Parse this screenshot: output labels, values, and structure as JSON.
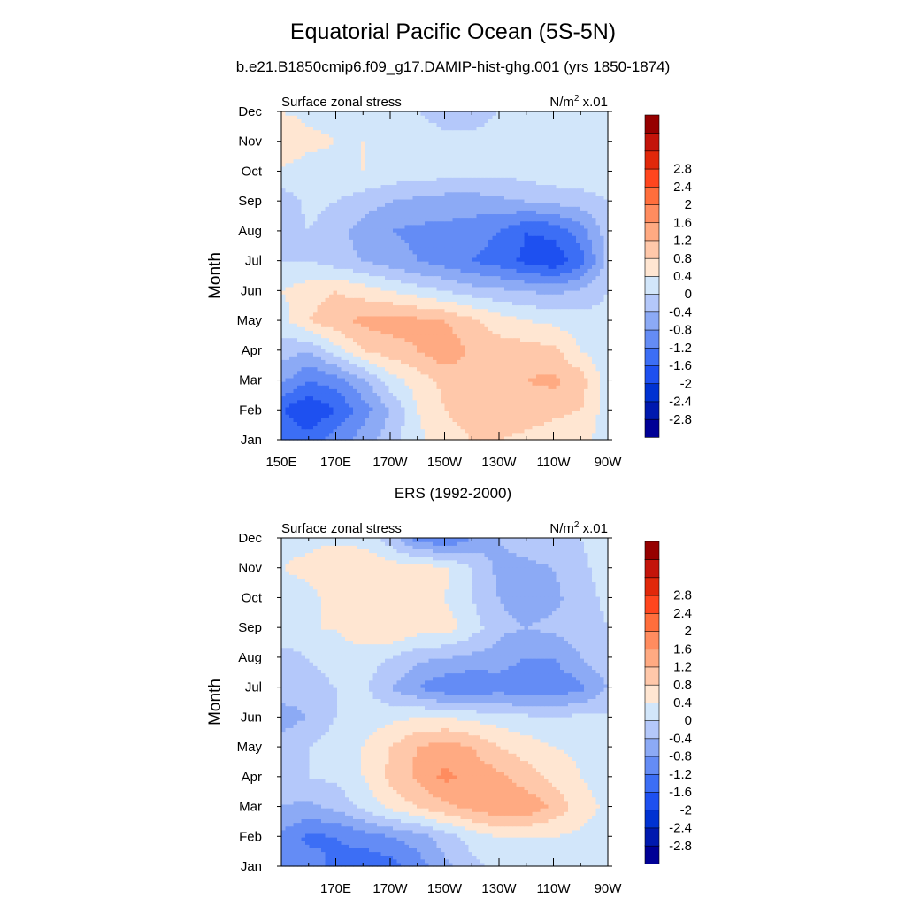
{
  "main_title": "Equatorial Pacific Ocean (5S-5N)",
  "subtitle": "b.e21.B1850cmip6.f09_g17.DAMIP-hist-ghg.001 (yrs 1850-1874)",
  "colors": [
    "#000096",
    "#0019af",
    "#0032d2",
    "#1e50f0",
    "#3c6ef5",
    "#648cf5",
    "#8caaf5",
    "#b4c8fa",
    "#d2e6fa",
    "#ffe6d2",
    "#ffc8aa",
    "#ffaa82",
    "#ff8c5f",
    "#ff6e3c",
    "#ff461e",
    "#e1280a",
    "#c3140a",
    "#960000"
  ],
  "chart_data": [
    {
      "type": "heatmap",
      "title": "",
      "left_label": "Surface zonal stress",
      "right_label": "N/m",
      "units_sup": "2",
      "units_suffix": " x.01",
      "ylabel": "Month",
      "xlabel": "",
      "x": [
        150,
        160,
        170,
        180,
        190,
        200,
        210,
        220,
        230,
        240,
        250,
        260,
        270
      ],
      "y_months": [
        "Jan",
        "Feb",
        "Mar",
        "Apr",
        "May",
        "Jun",
        "Jul",
        "Aug",
        "Sep",
        "Oct",
        "Nov",
        "Dec"
      ],
      "xticklabels": [
        "150E",
        "170E",
        "170W",
        "150W",
        "130W",
        "110W",
        "90W"
      ],
      "xtick_values": [
        150,
        170,
        190,
        210,
        230,
        250,
        270
      ],
      "levels": [
        -2.8,
        -2.4,
        -2,
        -1.6,
        -1.2,
        -0.8,
        -0.4,
        0,
        0.4,
        0.8,
        1.2,
        1.6,
        2,
        2.4,
        2.8
      ],
      "z": [
        [
          -1.2,
          -1.4,
          -1.0,
          -0.6,
          -0.2,
          0.3,
          0.6,
          0.8,
          0.8,
          0.7,
          0.6,
          0.5,
          0.2
        ],
        [
          -1.6,
          -2.0,
          -1.6,
          -1.0,
          -0.4,
          0.4,
          0.8,
          1.0,
          1.0,
          1.0,
          0.9,
          0.8,
          0.2
        ],
        [
          -0.7,
          -1.2,
          -1.0,
          -0.5,
          0.2,
          0.6,
          0.9,
          1.1,
          1.2,
          1.2,
          1.3,
          1.0,
          0.2
        ],
        [
          -0.2,
          -0.4,
          0.2,
          0.8,
          1.0,
          1.2,
          1.5,
          1.1,
          1.0,
          1.0,
          0.9,
          0.4,
          0.1
        ],
        [
          0.2,
          0.8,
          1.1,
          1.3,
          1.4,
          1.3,
          1.2,
          0.9,
          0.6,
          0.4,
          0.3,
          0.2,
          0.1
        ],
        [
          0.4,
          0.6,
          0.8,
          0.6,
          0.4,
          0.2,
          0.0,
          -0.2,
          -0.3,
          -0.4,
          -0.5,
          -0.3,
          0.0
        ],
        [
          0.0,
          0.0,
          -0.2,
          -0.4,
          -0.6,
          -0.8,
          -1.0,
          -1.2,
          -1.4,
          -1.7,
          -1.9,
          -1.4,
          -0.3
        ],
        [
          -0.3,
          0.0,
          -0.2,
          -0.6,
          -0.8,
          -0.9,
          -0.9,
          -1.0,
          -1.2,
          -1.6,
          -1.5,
          -1.0,
          -0.2
        ],
        [
          -0.2,
          0.1,
          0.0,
          -0.2,
          -0.4,
          -0.5,
          -0.6,
          -0.6,
          -0.5,
          -0.4,
          -0.3,
          -0.2,
          0.0
        ],
        [
          0.3,
          0.2,
          0.3,
          0.4,
          0.3,
          0.2,
          0.2,
          0.1,
          0.1,
          0.2,
          0.3,
          0.3,
          0.2
        ],
        [
          0.8,
          0.5,
          0.4,
          0.4,
          0.4,
          0.3,
          0.1,
          0.1,
          0.2,
          0.4,
          0.4,
          0.3,
          0.3
        ],
        [
          0.4,
          0.3,
          0.3,
          0.3,
          0.2,
          0.0,
          -0.2,
          -0.2,
          0.0,
          0.3,
          0.3,
          0.3,
          0.3
        ]
      ]
    },
    {
      "type": "heatmap",
      "title": "ERS (1992-2000)",
      "left_label": "Surface zonal stress",
      "right_label": "N/m",
      "units_sup": "2",
      "units_suffix": " x.01",
      "ylabel": "Month",
      "xlabel": "",
      "x": [
        150,
        160,
        170,
        180,
        190,
        200,
        210,
        220,
        230,
        240,
        250,
        260,
        270
      ],
      "y_months": [
        "Jan",
        "Feb",
        "Mar",
        "Apr",
        "May",
        "Jun",
        "Jul",
        "Aug",
        "Sep",
        "Oct",
        "Nov",
        "Dec"
      ],
      "xticklabels": [
        "170E",
        "170W",
        "150W",
        "130W",
        "110W",
        "90W"
      ],
      "xtick_values": [
        170,
        190,
        210,
        230,
        250,
        270
      ],
      "levels": [
        -2.8,
        -2.4,
        -2,
        -1.6,
        -1.2,
        -0.8,
        -0.4,
        0,
        0.4,
        0.8,
        1.2,
        1.6,
        2,
        2.4,
        2.8
      ],
      "z": [
        [
          -0.8,
          -1.0,
          -1.3,
          -1.5,
          -1.4,
          -1.0,
          -0.5,
          -0.2,
          0.2,
          0.3,
          0.2,
          0.2,
          0.1
        ],
        [
          -0.9,
          -1.3,
          -1.2,
          -1.0,
          -0.8,
          -0.6,
          -0.2,
          0.2,
          0.4,
          0.4,
          0.4,
          0.3,
          0.2
        ],
        [
          -0.4,
          -0.5,
          -0.3,
          0.1,
          0.5,
          0.8,
          1.1,
          1.3,
          1.6,
          1.5,
          1.1,
          0.6,
          0.3
        ],
        [
          -0.2,
          0.0,
          0.1,
          0.4,
          0.9,
          1.3,
          1.7,
          1.5,
          1.3,
          1.0,
          0.7,
          0.4,
          0.2
        ],
        [
          -0.2,
          0.0,
          0.2,
          0.4,
          0.8,
          1.2,
          1.4,
          1.2,
          0.8,
          0.6,
          0.4,
          0.3,
          0.2
        ],
        [
          -0.6,
          -0.4,
          0.0,
          0.2,
          0.3,
          0.4,
          0.4,
          0.3,
          0.2,
          0.1,
          0.0,
          0.1,
          0.1
        ],
        [
          -0.2,
          -0.2,
          0.0,
          0.1,
          -0.4,
          -0.8,
          -1.1,
          -1.2,
          -1.0,
          -1.2,
          -1.1,
          -0.9,
          -0.4
        ],
        [
          -0.2,
          0.0,
          0.2,
          0.2,
          0.0,
          -0.3,
          -0.4,
          -0.5,
          -0.6,
          -0.8,
          -0.8,
          -0.4,
          -0.1
        ],
        [
          0.3,
          0.4,
          0.4,
          0.7,
          0.8,
          0.6,
          0.6,
          0.2,
          -0.3,
          -0.4,
          -0.3,
          -0.2,
          0.0
        ],
        [
          0.2,
          0.3,
          0.5,
          0.6,
          0.6,
          0.5,
          0.4,
          0.0,
          -0.4,
          -0.6,
          -0.5,
          -0.2,
          0.1
        ],
        [
          0.4,
          0.5,
          0.8,
          0.8,
          0.6,
          0.6,
          0.5,
          0.0,
          -0.5,
          -0.5,
          -0.4,
          -0.1,
          0.2
        ],
        [
          0.3,
          0.3,
          0.3,
          0.2,
          -0.2,
          -1.0,
          -1.2,
          -0.8,
          -0.4,
          -0.2,
          -0.1,
          0.0,
          0.2
        ]
      ]
    }
  ]
}
